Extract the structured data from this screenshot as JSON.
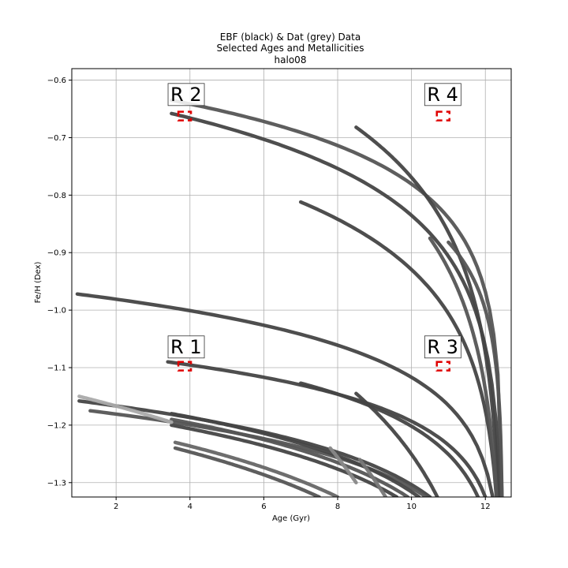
{
  "chart_data": {
    "type": "line",
    "title_lines": [
      "EBF (black) & Dat (grey) Data",
      "Selected Ages and Metallicities",
      "halo08"
    ],
    "xlabel": "Age (Gyr)",
    "ylabel": "Fe/H (Dex)",
    "xlim": [
      0.8,
      12.7
    ],
    "ylim": [
      -1.325,
      -0.58
    ],
    "xticks": [
      2,
      4,
      6,
      8,
      10,
      12
    ],
    "yticks": [
      -0.6,
      -0.7,
      -0.8,
      -0.9,
      -1.0,
      -1.1,
      -1.2,
      -1.3
    ],
    "xtick_labels": [
      "2",
      "4",
      "6",
      "8",
      "10",
      "12"
    ],
    "ytick_labels": [
      "−0.6",
      "−0.7",
      "−0.8",
      "−0.9",
      "−1.0",
      "−1.1",
      "−1.2",
      "−1.3"
    ],
    "grid": true,
    "curve_end_x": 12.45,
    "series": [
      {
        "x0": 3.5,
        "y0": -0.635,
        "x1": 12.45,
        "y1": -1.325,
        "color": "#555555"
      },
      {
        "x0": 3.5,
        "y0": -0.658,
        "x1": 12.4,
        "y1": -1.325,
        "color": "#444444"
      },
      {
        "x0": 8.45,
        "y0": -0.678,
        "x1": 12.5,
        "y1": -1.325,
        "color": "#555555"
      },
      {
        "x0": 8.5,
        "y0": -0.682,
        "x1": 12.35,
        "y1": -1.325,
        "color": "#444444"
      },
      {
        "x0": 7.0,
        "y0": -0.812,
        "x1": 12.3,
        "y1": -1.325,
        "color": "#444444"
      },
      {
        "x0": 10.5,
        "y0": -0.875,
        "x1": 12.3,
        "y1": -1.325,
        "color": "#555555"
      },
      {
        "x0": 11.0,
        "y0": -0.882,
        "x1": 12.45,
        "y1": -1.325,
        "color": "#555555"
      },
      {
        "x0": 0.95,
        "y0": -0.972,
        "x1": 12.2,
        "y1": -1.325,
        "color": "#444444"
      },
      {
        "x0": 3.4,
        "y0": -1.09,
        "x1": 12.0,
        "y1": -1.325,
        "color": "#444444"
      },
      {
        "x0": 7.0,
        "y0": -1.127,
        "x1": 11.8,
        "y1": -1.325,
        "color": "#444444"
      },
      {
        "x0": 8.5,
        "y0": -1.145,
        "x1": 10.7,
        "y1": -1.325,
        "color": "#444444"
      },
      {
        "x0": 1.0,
        "y0": -1.158,
        "x1": 10.5,
        "y1": -1.325,
        "color": "#444444"
      },
      {
        "x0": 1.3,
        "y0": -1.175,
        "x1": 10.4,
        "y1": -1.325,
        "color": "#555555"
      },
      {
        "x0": 3.5,
        "y0": -1.18,
        "x1": 10.2,
        "y1": -1.325,
        "color": "#444444"
      },
      {
        "x0": 3.5,
        "y0": -1.19,
        "x1": 9.9,
        "y1": -1.325,
        "color": "#555555"
      },
      {
        "x0": 3.5,
        "y0": -1.2,
        "x1": 9.6,
        "y1": -1.325,
        "color": "#444444"
      },
      {
        "x0": 3.6,
        "y0": -1.23,
        "x1": 8.0,
        "y1": -1.325,
        "color": "#666666"
      },
      {
        "x0": 3.6,
        "y0": -1.24,
        "x1": 7.5,
        "y1": -1.325,
        "color": "#555555"
      },
      {
        "x0": 1.0,
        "y0": -1.15,
        "x1": 3.5,
        "y1": -1.195,
        "color": "#aaaaaa"
      },
      {
        "x0": 7.8,
        "y0": -1.24,
        "x1": 8.5,
        "y1": -1.3,
        "color": "#888888"
      },
      {
        "x0": 8.6,
        "y0": -1.26,
        "x1": 9.3,
        "y1": -1.325,
        "color": "#777777"
      }
    ],
    "regions": [
      {
        "label": "R 1",
        "box": [
          3.75,
          3.75,
          -1.09,
          -1.105
        ],
        "text_x": 3.45,
        "text_y": -1.075
      },
      {
        "label": "R 2",
        "box": [
          3.75,
          3.75,
          -0.655,
          -0.67
        ],
        "text_x": 3.45,
        "text_y": -0.636
      },
      {
        "label": "R 3",
        "box": [
          10.75,
          10.75,
          -1.09,
          -1.105
        ],
        "text_x": 10.4,
        "text_y": -1.075
      },
      {
        "label": "R 4",
        "box": [
          10.75,
          10.75,
          -0.655,
          -0.67
        ],
        "text_x": 10.4,
        "text_y": -0.636
      }
    ]
  }
}
